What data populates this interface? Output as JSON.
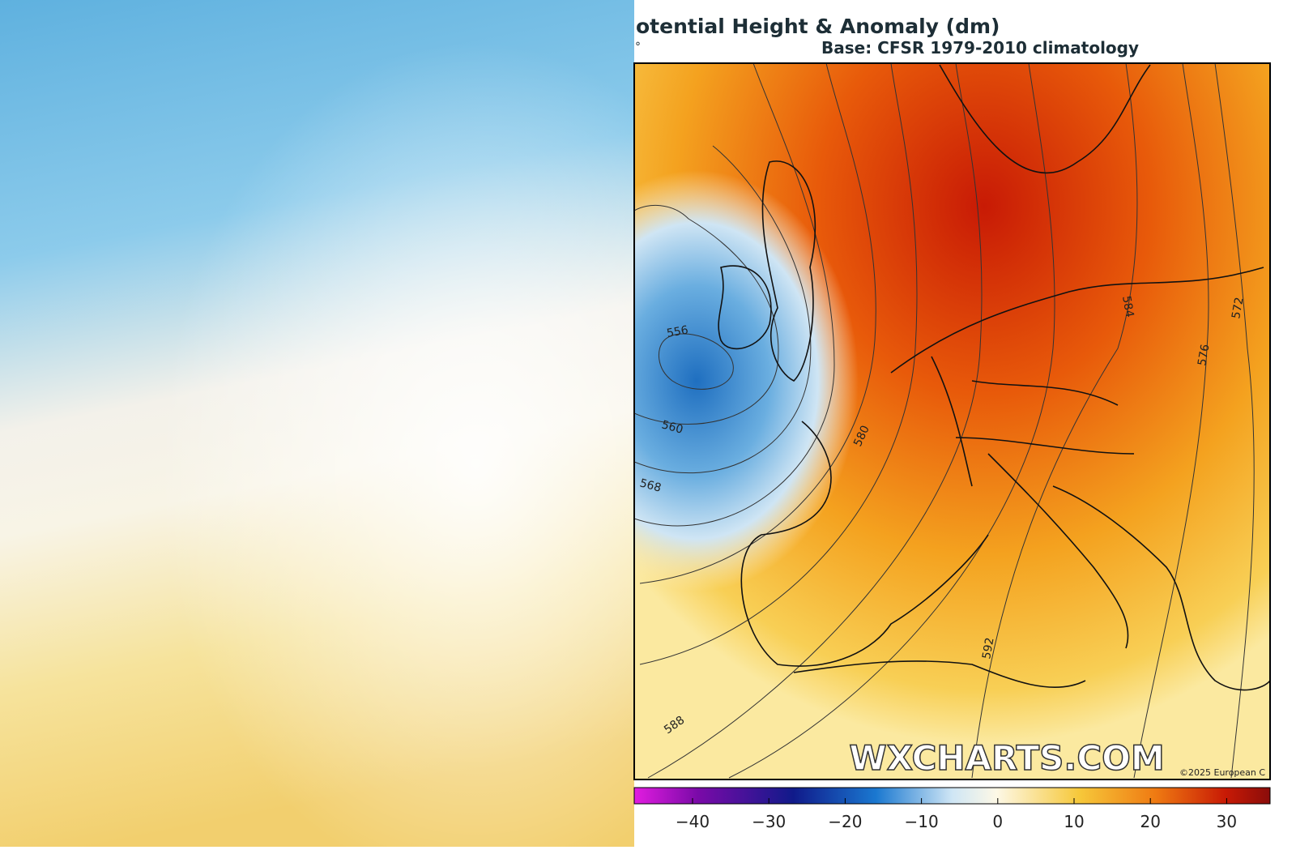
{
  "map": {
    "title": "otential Height & Anomaly (dm)",
    "degree_mark": "°",
    "subtitle": "Base: CFSR 1979-2010 climatology",
    "contour_labels": [
      "556",
      "560",
      "568",
      "580",
      "584",
      "576",
      "572",
      "592",
      "588"
    ],
    "watermark": "WXCHARTS.COM",
    "copyright": "©2025 European C",
    "colorbar_ticks": [
      "−40",
      "−30",
      "−20",
      "−10",
      "0",
      "10",
      "20",
      "30"
    ]
  }
}
